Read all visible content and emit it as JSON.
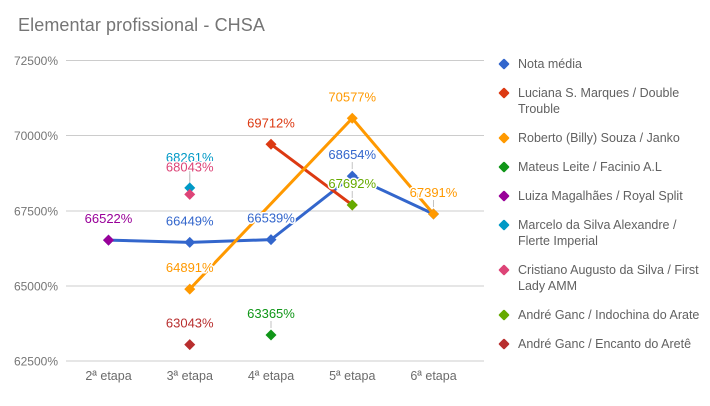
{
  "title": "Elementar profissional - CHSA",
  "chart_data": {
    "type": "line",
    "title": "Elementar profissional - CHSA",
    "categories": [
      "2ª etapa",
      "3ª etapa",
      "4ª etapa",
      "5ª etapa",
      "6ª etapa"
    ],
    "ylim": [
      62500,
      72500
    ],
    "y_ticks": [
      {
        "label": "72500%",
        "v": 72500
      },
      {
        "label": "70000%",
        "v": 70000
      },
      {
        "label": "67500%",
        "v": 67500
      },
      {
        "label": "65000%",
        "v": 65000
      },
      {
        "label": "62500%",
        "v": 62500
      }
    ],
    "grid": true,
    "legend_position": "right",
    "marker": "diamond",
    "series": [
      {
        "name": "Nota média",
        "color": "#3366CC",
        "points": [
          {
            "i": 0,
            "v": 66522
          },
          {
            "i": 1,
            "v": 66449,
            "label": "66449%"
          },
          {
            "i": 2,
            "v": 66539,
            "label": "66539%"
          },
          {
            "i": 3,
            "v": 68654,
            "label": "68654%",
            "stem": true
          },
          {
            "i": 4,
            "v": 67391
          }
        ]
      },
      {
        "name": "Luciana S. Marques / Double Trouble",
        "color": "#DC3912",
        "points": [
          {
            "i": 2,
            "v": 69712,
            "label": "69712%"
          },
          {
            "i": 3,
            "v": 67693
          }
        ]
      },
      {
        "name": "Roberto (Billy) Souza / Janko",
        "color": "#FF9900",
        "points": [
          {
            "i": 1,
            "v": 64891,
            "label": "64891%"
          },
          {
            "i": 3,
            "v": 70577,
            "label": "70577%"
          },
          {
            "i": 4,
            "v": 67391,
            "label": "67391%",
            "stem": true
          }
        ]
      },
      {
        "name": "Mateus Leite / Facinio A.L",
        "color": "#109618",
        "points": [
          {
            "i": 2,
            "v": 63365,
            "label": "63365%",
            "stem": true
          }
        ]
      },
      {
        "name": "Luiza Magalhães / Royal Split",
        "color": "#990099",
        "points": [
          {
            "i": 0,
            "v": 66522,
            "label": "66522%"
          }
        ]
      },
      {
        "name": "Marcelo da Silva Alexandre / Flerte Imperial",
        "color": "#0099C6",
        "points": [
          {
            "i": 1,
            "v": 68261,
            "label": "68261%",
            "stem": true,
            "labelDy": 26
          }
        ]
      },
      {
        "name": "Cristiano Augusto da Silva / First Lady AMM",
        "color": "#DD4477",
        "points": [
          {
            "i": 1,
            "v": 68043,
            "label": "68043%",
            "stem": true,
            "labelDy": 23
          }
        ]
      },
      {
        "name": "André Ganc / Indochina do Arate",
        "color": "#66AA00",
        "points": [
          {
            "i": 3,
            "v": 67692,
            "label": "67692%",
            "stem": true
          }
        ]
      },
      {
        "name": "André Ganc / Encanto do Aretê",
        "color": "#B82E2E",
        "points": [
          {
            "i": 1,
            "v": 63043,
            "label": "63043%"
          }
        ]
      }
    ]
  }
}
